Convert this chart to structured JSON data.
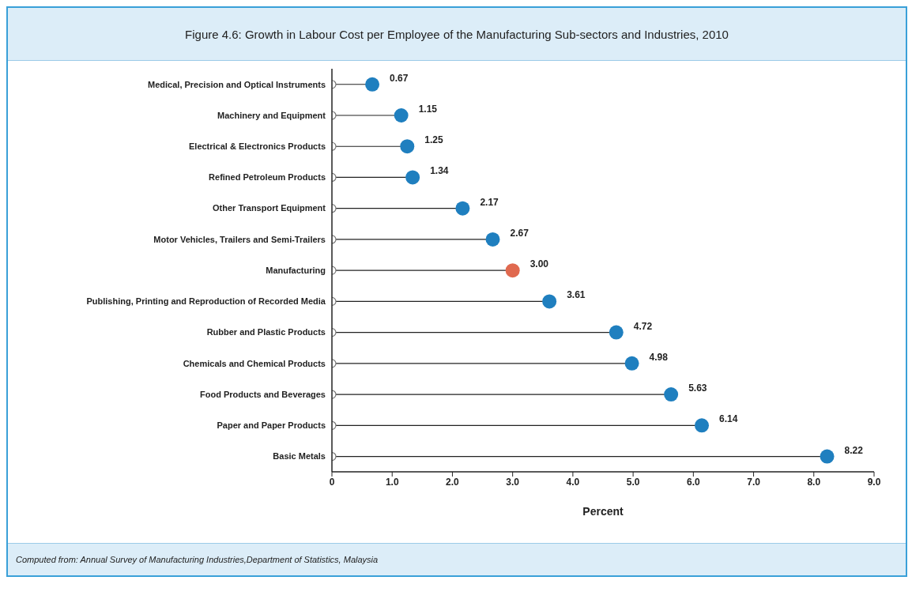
{
  "chart_data": {
    "type": "lollipop",
    "orientation": "horizontal",
    "title": "Figure 4.6: Growth in Labour Cost per Employee of the Manufacturing Sub-sectors and Industries, 2010",
    "xlabel": "Percent",
    "categories": [
      "Medical, Precision and Optical Instruments",
      "Machinery and Equipment",
      "Electrical & Electronics Products",
      "Refined Petroleum Products",
      "Other Transport Equipment",
      "Motor Vehicles, Trailers and Semi-Trailers",
      "Manufacturing",
      "Publishing, Printing and Reproduction of Recorded Media",
      "Rubber and Plastic Products",
      "Chemicals and Chemical Products",
      "Food Products and Beverages",
      "Paper and Paper Products",
      "Basic Metals"
    ],
    "values": [
      0.67,
      1.15,
      1.25,
      1.34,
      2.17,
      2.67,
      3.0,
      3.61,
      4.72,
      4.98,
      5.63,
      6.14,
      8.22
    ],
    "colors": [
      "#1f7fbf",
      "#1f7fbf",
      "#1f7fbf",
      "#1f7fbf",
      "#1f7fbf",
      "#1f7fbf",
      "#e0694f",
      "#1f7fbf",
      "#1f7fbf",
      "#1f7fbf",
      "#1f7fbf",
      "#1f7fbf",
      "#1f7fbf"
    ],
    "value_labels": [
      "0.67",
      "1.15",
      "1.25",
      "1.34",
      "2.17",
      "2.67",
      "3.00",
      "3.61",
      "4.72",
      "4.98",
      "5.63",
      "6.14",
      "8.22"
    ],
    "xlim": [
      0,
      9
    ],
    "xticks": [
      0,
      {
        "value": 1,
        "label": "1.0"
      },
      {
        "value": 2,
        "label": "2.0"
      },
      {
        "value": 3,
        "label": "3.0"
      },
      {
        "value": 4,
        "label": "4.0"
      },
      {
        "value": 5,
        "label": "5.0"
      },
      {
        "value": 6,
        "label": "6.0"
      },
      {
        "value": 7,
        "label": "7.0"
      },
      {
        "value": 8,
        "label": "8.0"
      },
      {
        "value": 9,
        "label": "9.0"
      }
    ],
    "grid": false,
    "legend": false,
    "annotations": [
      "Computed from: Annual Survey of Manufacturing Industries,Department of Statistics, Malaysia"
    ]
  }
}
